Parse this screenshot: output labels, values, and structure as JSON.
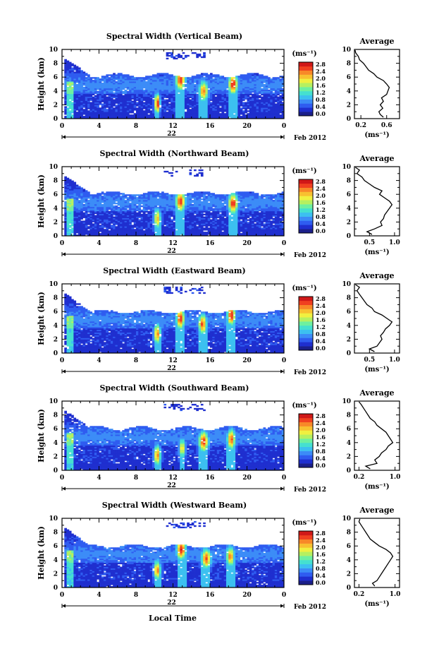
{
  "figure": {
    "xlabel": "Local Time",
    "day_label": "22",
    "date_label": "Feb 2012",
    "unit_label": "(ms⁻¹)",
    "avg_title": "Average",
    "avg_xlabel": "(ms⁻¹)"
  },
  "colorbar": {
    "ticks": [
      "2.8",
      "2.4",
      "2.0",
      "1.6",
      "1.2",
      "0.8",
      "0.4",
      "0.0"
    ],
    "colors": [
      "#1b1f8a",
      "#1f2fcf",
      "#2f5cf0",
      "#3c8cf7",
      "#3cc0f0",
      "#45e0d0",
      "#6ef0a0",
      "#b6f060",
      "#f0f040",
      "#f8c030",
      "#f88828",
      "#f04020",
      "#d01818"
    ]
  },
  "chart_data": [
    {
      "type": "heatmap",
      "title": "Spectral Width (Vertical Beam)",
      "xlabel": "Local Time",
      "ylabel": "Height (km)",
      "x_ticks": [
        "0",
        "4",
        "8",
        "12",
        "16",
        "20",
        "0"
      ],
      "y_ticks": [
        "0",
        "2",
        "4",
        "6",
        "8",
        "10"
      ],
      "xlim": [
        0,
        24
      ],
      "ylim": [
        0,
        10
      ],
      "echo_top_km": 6.3,
      "hotspots": [
        {
          "t": 10.3,
          "h": 2.2,
          "w": 0.2,
          "v": 3.0
        },
        {
          "t": 12.8,
          "h": 5.6,
          "w": 0.35,
          "v": 3.0
        },
        {
          "t": 15.3,
          "h": 4.0,
          "w": 0.35,
          "v": 2.6
        },
        {
          "t": 18.5,
          "h": 5.0,
          "w": 0.35,
          "v": 3.0
        }
      ],
      "average": {
        "title": "Average",
        "xlabel": "(ms⁻¹)",
        "x_ticks": [
          "0.2",
          "0.6"
        ],
        "xlim": [
          0.1,
          0.8
        ],
        "y_ticks": [
          "0",
          "2",
          "4",
          "6",
          "8",
          "10"
        ],
        "ylim": [
          0,
          10
        ],
        "height": [
          0.2,
          0.6,
          1.0,
          1.5,
          2.0,
          2.5,
          3.0,
          3.5,
          4.0,
          4.5,
          5.0,
          5.5,
          6.0,
          6.5,
          7.0,
          7.5,
          8.0,
          8.5,
          9.0,
          9.5,
          9.9
        ],
        "value": [
          0.55,
          0.5,
          0.48,
          0.54,
          0.5,
          0.55,
          0.52,
          0.6,
          0.62,
          0.64,
          0.6,
          0.55,
          0.45,
          0.4,
          0.32,
          0.28,
          0.24,
          0.18,
          0.16,
          0.12,
          0.11
        ]
      }
    },
    {
      "type": "heatmap",
      "title": "Spectral Width (Northward Beam)",
      "xlabel": "Local Time",
      "ylabel": "Height (km)",
      "x_ticks": [
        "0",
        "4",
        "8",
        "12",
        "16",
        "20",
        "0"
      ],
      "y_ticks": [
        "0",
        "2",
        "4",
        "6",
        "8",
        "10"
      ],
      "xlim": [
        0,
        24
      ],
      "ylim": [
        0,
        10
      ],
      "echo_top_km": 6.2,
      "hotspots": [
        {
          "t": 10.3,
          "h": 2.5,
          "w": 0.25,
          "v": 2.4
        },
        {
          "t": 12.8,
          "h": 5.0,
          "w": 0.35,
          "v": 3.0
        },
        {
          "t": 18.5,
          "h": 4.7,
          "w": 0.35,
          "v": 3.0
        }
      ],
      "average": {
        "title": "Average",
        "xlabel": "(ms⁻¹)",
        "x_ticks": [
          "0.5",
          "1.0"
        ],
        "xlim": [
          0.2,
          1.1
        ],
        "y_ticks": [
          "0",
          "2",
          "4",
          "6",
          "8",
          "10"
        ],
        "ylim": [
          0,
          10
        ],
        "height": [
          0.2,
          0.6,
          1.0,
          1.5,
          2.0,
          2.5,
          3.0,
          3.5,
          4.0,
          4.5,
          5.0,
          5.5,
          6.0,
          6.5,
          7.0,
          7.5,
          8.0,
          8.5,
          9.0,
          9.5,
          9.9
        ],
        "value": [
          0.55,
          0.45,
          0.6,
          0.75,
          0.72,
          0.78,
          0.8,
          0.85,
          0.9,
          0.95,
          0.9,
          0.8,
          0.7,
          0.75,
          0.6,
          0.5,
          0.4,
          0.35,
          0.25,
          0.3,
          0.22
        ]
      }
    },
    {
      "type": "heatmap",
      "title": "Spectral Width (Eastward Beam)",
      "xlabel": "Local Time",
      "ylabel": "Height (km)",
      "x_ticks": [
        "0",
        "4",
        "8",
        "12",
        "16",
        "20",
        "0"
      ],
      "y_ticks": [
        "0",
        "2",
        "4",
        "6",
        "8",
        "10"
      ],
      "xlim": [
        0,
        24
      ],
      "ylim": [
        0,
        10
      ],
      "echo_top_km": 6.0,
      "hotspots": [
        {
          "t": 10.3,
          "h": 2.8,
          "w": 0.25,
          "v": 2.6
        },
        {
          "t": 12.8,
          "h": 5.0,
          "w": 0.3,
          "v": 3.0
        },
        {
          "t": 15.2,
          "h": 4.2,
          "w": 0.3,
          "v": 2.8
        },
        {
          "t": 18.3,
          "h": 5.5,
          "w": 0.3,
          "v": 3.0
        }
      ],
      "average": {
        "title": "Average",
        "xlabel": "(ms⁻¹)",
        "x_ticks": [
          "0.5",
          "1.0"
        ],
        "xlim": [
          0.2,
          1.1
        ],
        "y_ticks": [
          "0",
          "2",
          "4",
          "6",
          "8",
          "10"
        ],
        "ylim": [
          0,
          10
        ],
        "height": [
          0.2,
          0.6,
          1.0,
          1.5,
          2.0,
          2.5,
          3.0,
          3.5,
          4.0,
          4.5,
          5.0,
          5.5,
          6.0,
          6.5,
          7.0,
          7.5,
          8.0,
          8.5,
          9.0,
          9.5,
          9.9
        ],
        "value": [
          0.6,
          0.5,
          0.65,
          0.7,
          0.75,
          0.72,
          0.78,
          0.82,
          0.9,
          0.95,
          0.85,
          0.75,
          0.6,
          0.55,
          0.45,
          0.4,
          0.35,
          0.3,
          0.25,
          0.3,
          0.22
        ]
      }
    },
    {
      "type": "heatmap",
      "title": "Spectral Width (Southward Beam)",
      "xlabel": "Local Time",
      "ylabel": "Height (km)",
      "x_ticks": [
        "0",
        "4",
        "8",
        "12",
        "16",
        "20",
        "0"
      ],
      "y_ticks": [
        "0",
        "2",
        "4",
        "6",
        "8",
        "10"
      ],
      "xlim": [
        0,
        24
      ],
      "ylim": [
        0,
        10
      ],
      "echo_top_km": 6.1,
      "hotspots": [
        {
          "t": 10.3,
          "h": 2.2,
          "w": 0.25,
          "v": 2.6
        },
        {
          "t": 13.0,
          "h": 3.2,
          "w": 0.25,
          "v": 2.2
        },
        {
          "t": 15.3,
          "h": 4.2,
          "w": 0.35,
          "v": 3.0
        },
        {
          "t": 18.3,
          "h": 4.5,
          "w": 0.3,
          "v": 2.8
        }
      ],
      "average": {
        "title": "Average",
        "xlabel": "(ms⁻¹)",
        "x_ticks": [
          "0.2",
          "1.0"
        ],
        "xlim": [
          0.1,
          1.1
        ],
        "y_ticks": [
          "0",
          "2",
          "4",
          "6",
          "8",
          "10"
        ],
        "ylim": [
          0,
          10
        ],
        "height": [
          0.2,
          0.6,
          1.0,
          1.5,
          2.0,
          2.5,
          3.0,
          3.5,
          4.0,
          4.5,
          5.0,
          5.5,
          6.0,
          6.5,
          7.0,
          7.5,
          8.0,
          8.5,
          9.0,
          9.5,
          9.9
        ],
        "value": [
          0.45,
          0.35,
          0.6,
          0.55,
          0.65,
          0.7,
          0.8,
          0.85,
          0.95,
          0.9,
          0.85,
          0.8,
          0.7,
          0.6,
          0.55,
          0.45,
          0.4,
          0.35,
          0.3,
          0.25,
          0.2
        ]
      }
    },
    {
      "type": "heatmap",
      "title": "Spectral Width (Westward Beam)",
      "xlabel": "Local Time",
      "ylabel": "Height (km)",
      "x_ticks": [
        "0",
        "4",
        "8",
        "12",
        "16",
        "20",
        "0"
      ],
      "y_ticks": [
        "0",
        "2",
        "4",
        "6",
        "8",
        "10"
      ],
      "xlim": [
        0,
        24
      ],
      "ylim": [
        0,
        10
      ],
      "echo_top_km": 6.0,
      "hotspots": [
        {
          "t": 10.3,
          "h": 2.5,
          "w": 0.25,
          "v": 2.6
        },
        {
          "t": 12.9,
          "h": 5.5,
          "w": 0.35,
          "v": 3.0
        },
        {
          "t": 15.6,
          "h": 4.2,
          "w": 0.35,
          "v": 2.8
        },
        {
          "t": 18.2,
          "h": 4.5,
          "w": 0.3,
          "v": 2.6
        }
      ],
      "average": {
        "title": "Average",
        "xlabel": "(ms⁻¹)",
        "x_ticks": [
          "0.2",
          "1.0"
        ],
        "xlim": [
          0.1,
          1.1
        ],
        "y_ticks": [
          "0",
          "2",
          "4",
          "6",
          "8",
          "10"
        ],
        "ylim": [
          0,
          10
        ],
        "height": [
          0.2,
          0.6,
          1.0,
          1.5,
          2.0,
          2.5,
          3.0,
          3.5,
          4.0,
          4.5,
          5.0,
          5.5,
          6.0,
          6.5,
          7.0,
          7.5,
          8.0,
          8.5,
          9.0,
          9.5,
          9.9
        ],
        "value": [
          0.55,
          0.5,
          0.6,
          0.65,
          0.7,
          0.75,
          0.8,
          0.85,
          0.9,
          0.95,
          0.9,
          0.8,
          0.65,
          0.55,
          0.45,
          0.4,
          0.35,
          0.3,
          0.25,
          0.2,
          0.22
        ]
      }
    }
  ]
}
